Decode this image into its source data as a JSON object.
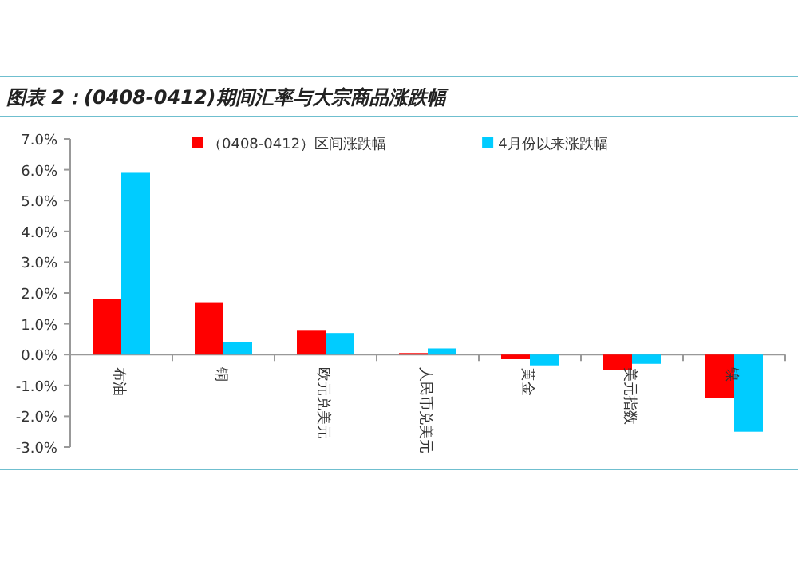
{
  "chart_data": {
    "type": "bar",
    "title": "图表 2：(0408-0412)期间汇率与大宗商品涨跌幅",
    "categories": [
      "布油",
      "铜",
      "欧元兑美元",
      "人民币兑美元",
      "黄金",
      "美元指数",
      "镍"
    ],
    "series": [
      {
        "name": "（0408-0412）区间涨跌幅",
        "color": "#ff0000",
        "values": [
          1.8,
          1.7,
          0.8,
          0.05,
          -0.15,
          -0.5,
          -1.4
        ]
      },
      {
        "name": "4月份以来涨跌幅",
        "color": "#00ccff",
        "values": [
          5.9,
          0.4,
          0.7,
          0.2,
          -0.35,
          -0.3,
          -2.5
        ]
      }
    ],
    "ylim": [
      -3,
      7
    ],
    "yticks": [
      {
        "value": -3,
        "label": "-3.0%"
      },
      {
        "value": -2,
        "label": "-2.0%"
      },
      {
        "value": -1,
        "label": "-1.0%"
      },
      {
        "value": 0,
        "label": "0.0%"
      },
      {
        "value": 1,
        "label": "1.0%"
      },
      {
        "value": 2,
        "label": "2.0%"
      },
      {
        "value": 3,
        "label": "3.0%"
      },
      {
        "value": 4,
        "label": "4.0%"
      },
      {
        "value": 5,
        "label": "5.0%"
      },
      {
        "value": 6,
        "label": "6.0%"
      },
      {
        "value": 7,
        "label": "7.0%"
      }
    ],
    "legend": "top",
    "grid": false
  }
}
